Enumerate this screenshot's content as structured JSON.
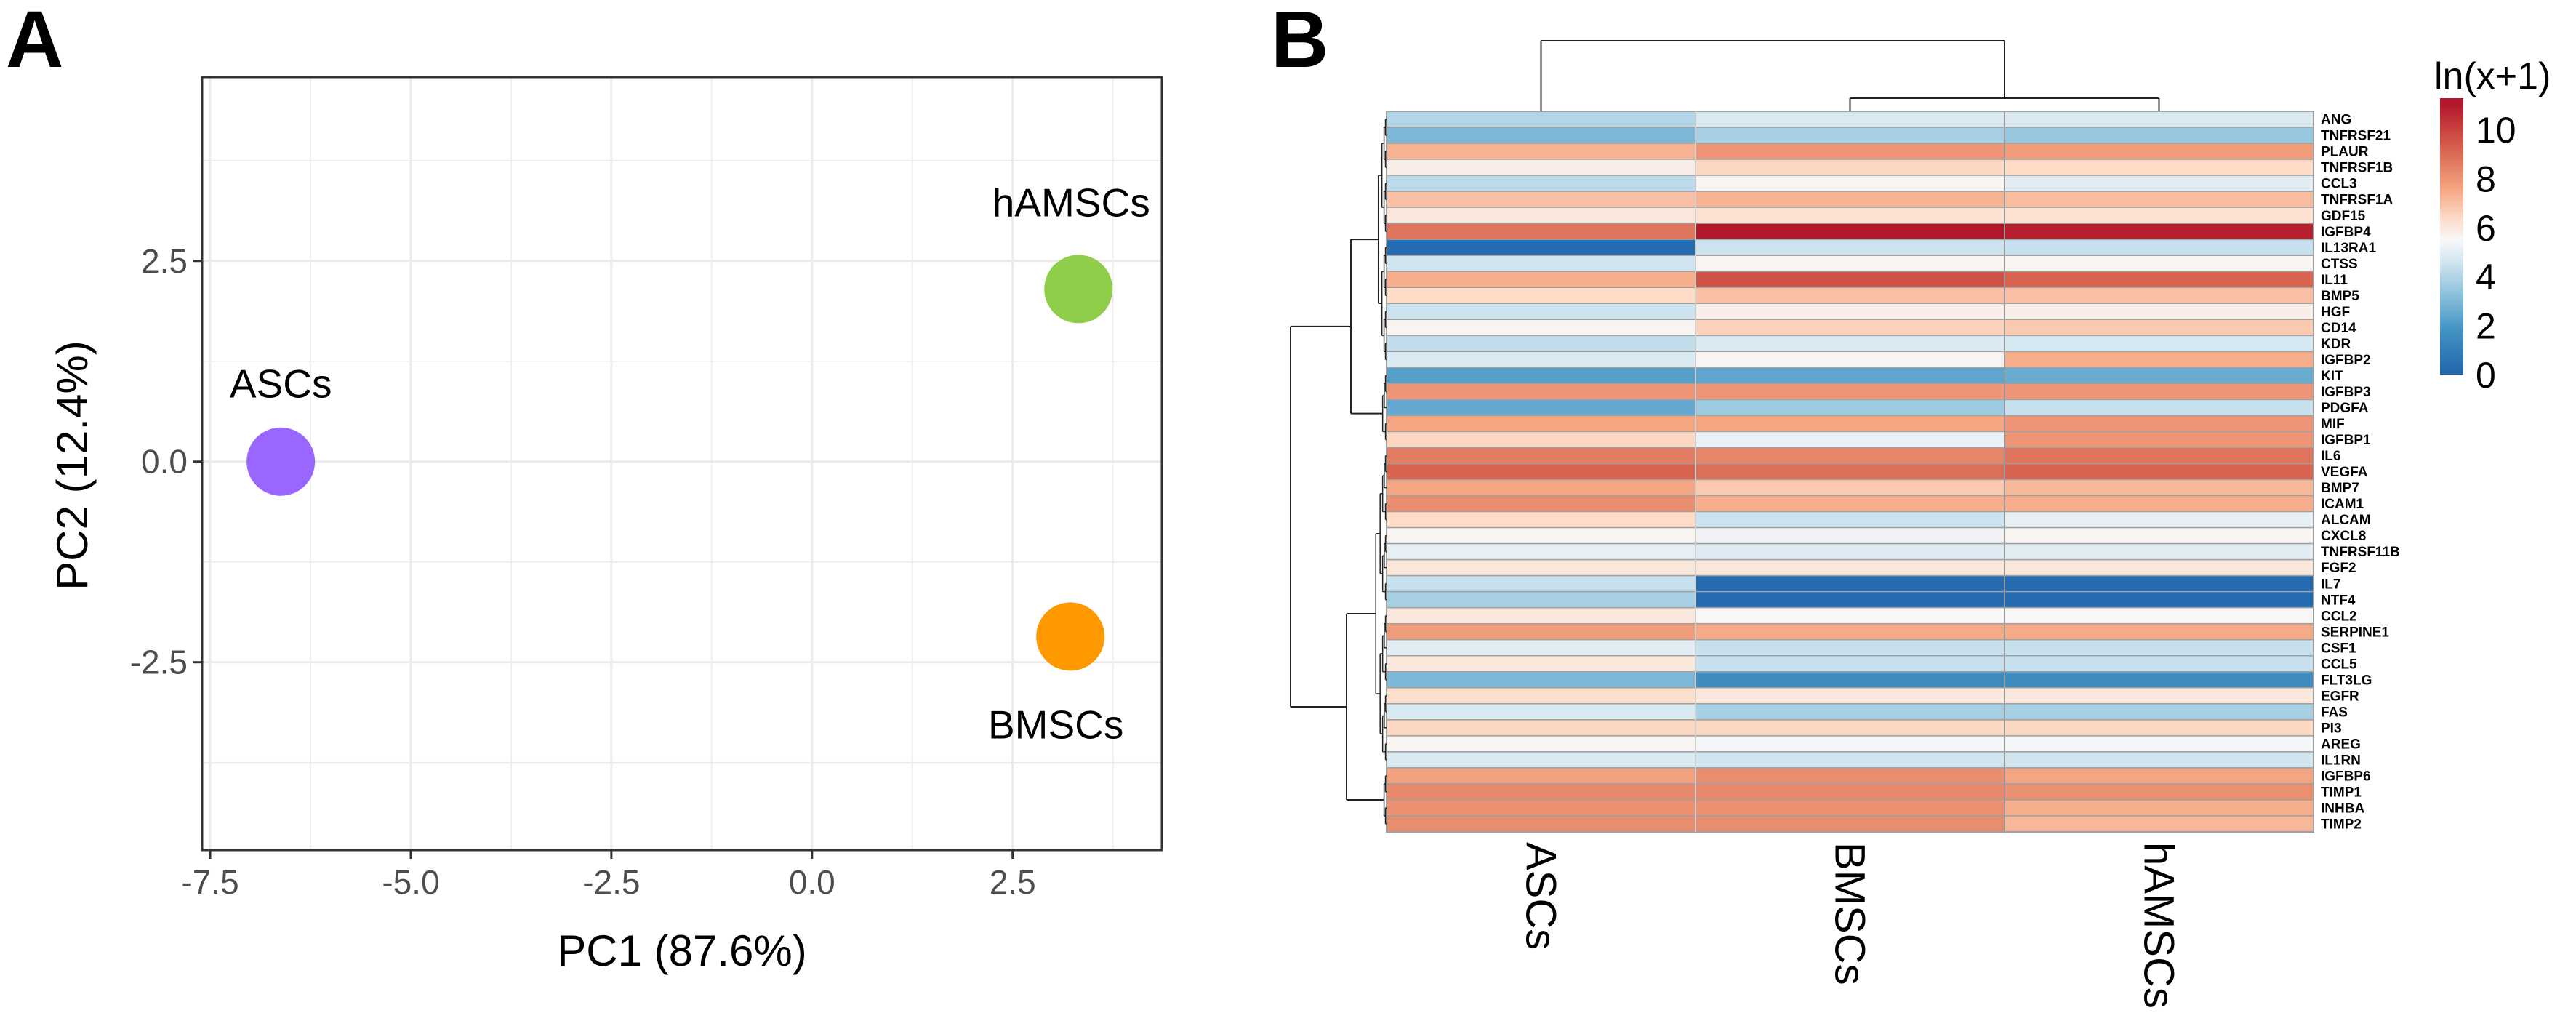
{
  "panels": {
    "a": "A",
    "b": "B"
  },
  "chart_data": [
    {
      "type": "scatter",
      "xlabel": "PC1 (87.6%)",
      "ylabel": "PC2 (12.4%)",
      "xlim": [
        -7.6,
        4.36
      ],
      "ylim": [
        -4.84,
        4.79
      ],
      "xticks": [
        -7.5,
        -5.0,
        -2.5,
        0.0,
        2.5
      ],
      "xtick_labels": [
        "-7.5",
        "-5.0",
        "-2.5",
        "0.0",
        "2.5"
      ],
      "yticks": [
        -2.5,
        0.0,
        2.5
      ],
      "ytick_labels": [
        "-2.5",
        "0.0",
        "2.5"
      ],
      "grid": true,
      "points": [
        {
          "label": "ASCs",
          "x": -6.62,
          "y": 0.0,
          "color": "#9966ff"
        },
        {
          "label": "hAMSCs",
          "x": 3.32,
          "y": 2.15,
          "color": "#8fce4a"
        },
        {
          "label": "BMSCs",
          "x": 3.22,
          "y": -2.18,
          "color": "#ff9900"
        }
      ]
    },
    {
      "type": "heatmap",
      "columns": [
        "ASCs",
        "BMSCs",
        "hAMSCs"
      ],
      "rows": [
        "ANG",
        "TNFRSF21",
        "PLAUR",
        "TNFRSF1B",
        "CCL3",
        "TNFRSF1A",
        "GDF15",
        "IGFBP4",
        "IL13RA1",
        "CTSS",
        "IL11",
        "BMP5",
        "HGF",
        "CD14",
        "KDR",
        "IGFBP2",
        "KIT",
        "IGFBP3",
        "PDGFA",
        "MIF",
        "IGFBP1",
        "IL6",
        "VEGFA",
        "BMP7",
        "ICAM1",
        "ALCAM",
        "CXCL8",
        "TNFRSF11B",
        "FGF2",
        "IL7",
        "NTF4",
        "CCL2",
        "SERPINE1",
        "CSF1",
        "CCL5",
        "FLT3LG",
        "EGFR",
        "FAS",
        "PI3",
        "AREG",
        "IL1RN",
        "IGFBP6",
        "TIMP1",
        "INHBA",
        "TIMP2"
      ],
      "values": [
        [
          4.0,
          4.8,
          4.8
        ],
        [
          3.0,
          3.8,
          3.5
        ],
        [
          7.3,
          8.0,
          7.8
        ],
        [
          5.8,
          6.5,
          6.4
        ],
        [
          4.2,
          5.6,
          5.0
        ],
        [
          7.0,
          7.3,
          7.1
        ],
        [
          6.0,
          6.2,
          6.2
        ],
        [
          8.8,
          11.0,
          10.8
        ],
        [
          0.2,
          4.5,
          4.4
        ],
        [
          4.6,
          5.6,
          5.6
        ],
        [
          7.4,
          9.6,
          9.2
        ],
        [
          6.4,
          7.0,
          7.0
        ],
        [
          4.5,
          5.8,
          5.8
        ],
        [
          5.6,
          6.6,
          6.8
        ],
        [
          4.3,
          4.8,
          4.7
        ],
        [
          4.8,
          5.6,
          7.4
        ],
        [
          2.2,
          2.4,
          2.6
        ],
        [
          8.0,
          8.0,
          8.0
        ],
        [
          2.5,
          3.6,
          4.4
        ],
        [
          7.6,
          7.6,
          8.0
        ],
        [
          6.5,
          5.2,
          8.0
        ],
        [
          8.6,
          8.4,
          8.8
        ],
        [
          9.2,
          8.9,
          9.2
        ],
        [
          7.6,
          6.8,
          7.2
        ],
        [
          8.2,
          7.4,
          7.4
        ],
        [
          6.4,
          4.5,
          5.1
        ],
        [
          5.6,
          5.3,
          5.6
        ],
        [
          5.1,
          4.9,
          5.0
        ],
        [
          6.0,
          6.0,
          6.0
        ],
        [
          4.4,
          0.2,
          0.2
        ],
        [
          3.8,
          0.2,
          0.2
        ],
        [
          6.0,
          5.5,
          5.5
        ],
        [
          7.8,
          7.5,
          7.5
        ],
        [
          5.0,
          4.4,
          4.4
        ],
        [
          6.0,
          4.4,
          4.4
        ],
        [
          3.0,
          1.6,
          1.6
        ],
        [
          6.3,
          6.0,
          6.0
        ],
        [
          4.8,
          3.8,
          3.8
        ],
        [
          6.5,
          6.5,
          6.5
        ],
        [
          5.6,
          5.4,
          5.4
        ],
        [
          4.8,
          4.6,
          4.6
        ],
        [
          7.7,
          8.2,
          7.6
        ],
        [
          8.3,
          8.3,
          8.1
        ],
        [
          8.1,
          8.1,
          7.4
        ],
        [
          8.2,
          8.2,
          7.2
        ]
      ],
      "legend": {
        "title": "ln(x+1)",
        "ticks": [
          0,
          2,
          4,
          6,
          8,
          10
        ],
        "tick_labels": [
          "0",
          "2",
          "4",
          "6",
          "8",
          "10"
        ],
        "range": [
          0,
          11.3
        ],
        "colors": {
          "low": "#2166ac",
          "mid": "#f7f7f7",
          "high": "#b2182b"
        },
        "placement": "right"
      },
      "row_dendrogram": true,
      "column_dendrogram": true
    }
  ]
}
